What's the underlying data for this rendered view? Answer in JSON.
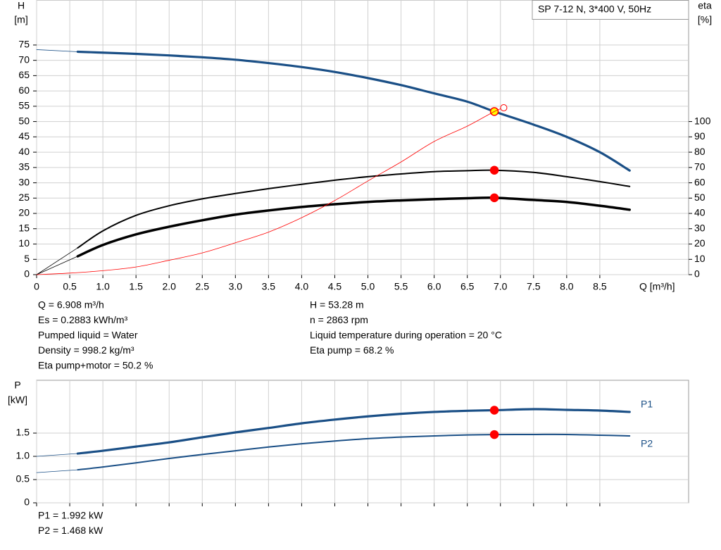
{
  "chart_data": [
    {
      "type": "line",
      "title": "SP 7-12 N, 3*400 V, 50Hz",
      "y_label": "H",
      "y_unit": "[m]",
      "y2_label": "eta",
      "y2_unit": "[%]",
      "x_label": "Q [m³/h]",
      "xlim": [
        0,
        9.84
      ],
      "ylim": [
        0,
        89.7
      ],
      "y2lim": [
        0,
        179.4
      ],
      "xticks": [
        0,
        0.5,
        {
          "value": 1,
          "label": "1.0"
        },
        1.5,
        {
          "value": 2,
          "label": "2.0"
        },
        2.5,
        {
          "value": 3,
          "label": "3.0"
        },
        3.5,
        {
          "value": 4,
          "label": "4.0"
        },
        4.5,
        {
          "value": 5,
          "label": "5.0"
        },
        5.5,
        {
          "value": 6,
          "label": "6.0"
        },
        6.5,
        {
          "value": 7,
          "label": "7.0"
        },
        7.5,
        {
          "value": 8,
          "label": "8.0"
        },
        8.5
      ],
      "yticks": [
        0,
        5,
        10,
        15,
        20,
        25,
        30,
        35,
        40,
        45,
        50,
        55,
        60,
        65,
        70,
        75
      ],
      "y2ticks": [
        0,
        10,
        20,
        30,
        40,
        50,
        60,
        70,
        80,
        90,
        100
      ],
      "grid": true,
      "duty_point_x": 6.908,
      "x": [
        0,
        0.62,
        1,
        1.5,
        2,
        2.5,
        3,
        3.5,
        4,
        4.5,
        5,
        5.5,
        6,
        6.5,
        6.908,
        7.5,
        8,
        8.5,
        8.95
      ],
      "series": [
        {
          "color": "#1a4f86",
          "marker_color": "#ffff00",
          "values": [
            73.5,
            72.8,
            72.5,
            72.1,
            71.6,
            71.0,
            70.2,
            69.1,
            67.8,
            66.2,
            64.2,
            61.9,
            59.2,
            56.5,
            53.28,
            49.0,
            45.0,
            40.0,
            34.0
          ]
        },
        {
          "color": "#000000",
          "marker_color": "#ff0000",
          "axis": "y2",
          "values": [
            0,
            17.5,
            28.6,
            38.7,
            45,
            49.5,
            53,
            56.2,
            59,
            61.7,
            64,
            65.8,
            67.3,
            67.9,
            68.2,
            66.8,
            64,
            60.8,
            57.6
          ]
        },
        {
          "color": "#000000",
          "marker_color": "#ff0000",
          "axis": "y2",
          "values": [
            0,
            12,
            19.4,
            26.3,
            31.3,
            35.5,
            39.2,
            41.9,
            44.2,
            46,
            47.5,
            48.5,
            49.3,
            49.9,
            50.2,
            48.8,
            47.5,
            45,
            42.4
          ]
        },
        {
          "color": "#ff0000",
          "end_marker": "open",
          "x": [
            0,
            0.5,
            1,
            1.5,
            2,
            2.5,
            3,
            3.5,
            4,
            4.5,
            5,
            5.5,
            6,
            6.5,
            6.908,
            7.05
          ],
          "values": [
            0,
            0.5,
            1.3,
            2.5,
            4.7,
            7.1,
            10.4,
            13.9,
            18.6,
            24.2,
            30.6,
            36.8,
            43.5,
            48.5,
            53.28,
            54.5
          ]
        }
      ],
      "info_left": [
        "Q = 6.908 m³/h",
        "Es = 0.2883 kWh/m³",
        "Pumped liquid = Water",
        "Density = 998.2 kg/m³",
        "Eta pump+motor = 50.2 %"
      ],
      "info_right": [
        "H = 53.28 m",
        "n = 2863 rpm",
        "Liquid temperature during operation = 20 °C",
        "Eta pump = 68.2 %"
      ]
    },
    {
      "type": "line",
      "y_label": "P",
      "y_unit": "[kW]",
      "xlim": [
        0,
        9.84
      ],
      "ylim": [
        0,
        2.636
      ],
      "xticks": [
        0,
        0.5,
        1,
        1.5,
        2,
        2.5,
        3,
        3.5,
        4,
        4.5,
        5,
        5.5,
        6,
        6.5,
        7,
        7.5,
        8,
        8.5
      ],
      "yticks": [
        0,
        0.5,
        {
          "value": 1,
          "label": "1.0"
        },
        1.5
      ],
      "grid": true,
      "duty_point_x": 6.908,
      "x": [
        0,
        0.62,
        1,
        1.5,
        2,
        2.5,
        3,
        3.5,
        4,
        4.5,
        5,
        5.5,
        6,
        6.5,
        6.908,
        7.5,
        8,
        8.5,
        8.95
      ],
      "series": [
        {
          "name": "P1",
          "color": "#1a4f86",
          "marker_color": "#ff0000",
          "values": [
            1.0,
            1.06,
            1.12,
            1.21,
            1.3,
            1.41,
            1.515,
            1.61,
            1.71,
            1.79,
            1.86,
            1.915,
            1.955,
            1.98,
            1.992,
            2.015,
            2.0,
            1.985,
            1.955
          ]
        },
        {
          "name": "P2",
          "color": "#1a4f86",
          "marker_color": "#ff0000",
          "values": [
            0.65,
            0.71,
            0.77,
            0.86,
            0.955,
            1.04,
            1.12,
            1.2,
            1.27,
            1.33,
            1.38,
            1.415,
            1.44,
            1.46,
            1.468,
            1.47,
            1.47,
            1.455,
            1.44
          ]
        }
      ],
      "info_left": [
        "P1 = 1.992 kW",
        "P2 = 1.468 kW"
      ]
    }
  ]
}
